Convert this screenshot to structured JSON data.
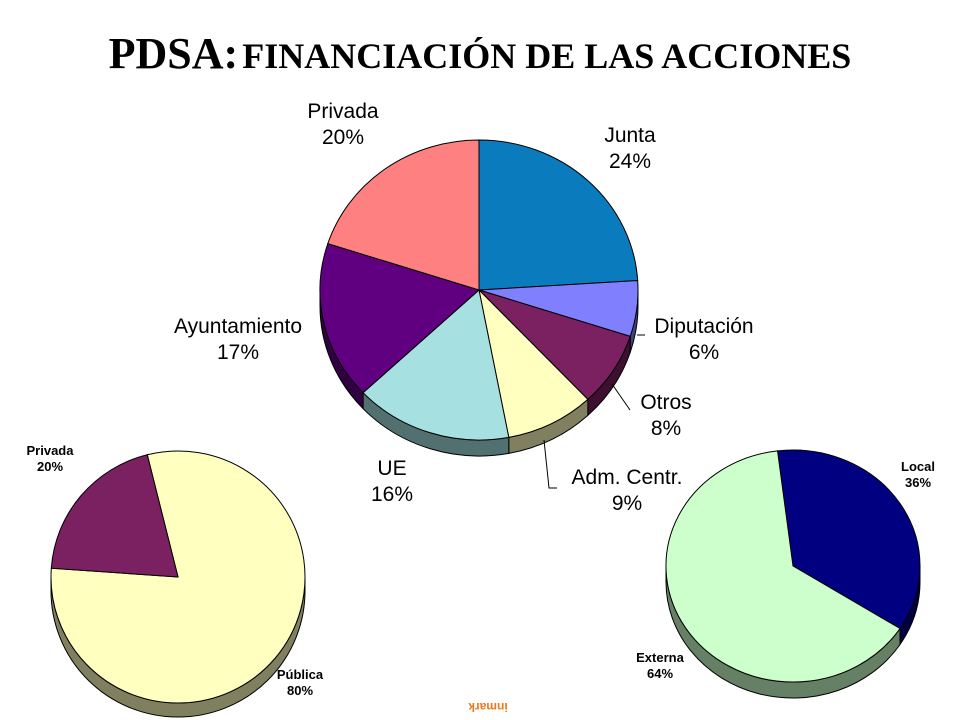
{
  "title": {
    "main": "PDSA:",
    "sub": "FINANCIACIÓN DE LAS ACCIONES"
  },
  "watermark": "inmark",
  "chart_data": [
    {
      "type": "pie",
      "slices": [
        {
          "label": "Junta",
          "pct": "24%",
          "value": 24,
          "color": "#0A7CBD"
        },
        {
          "label": "Diputación",
          "pct": "6%",
          "value": 6,
          "color": "#8080FF"
        },
        {
          "label": "Otros",
          "pct": "8%",
          "value": 8,
          "color": "#7B2060"
        },
        {
          "label": "Adm. Centr.",
          "pct": "9%",
          "value": 9,
          "color": "#FFFFC0"
        },
        {
          "label": "UE",
          "pct": "16%",
          "value": 16,
          "color": "#A6E0E0"
        },
        {
          "label": "Ayuntamiento",
          "pct": "17%",
          "value": 17,
          "color": "#600080"
        },
        {
          "label": "Privada",
          "pct": "20%",
          "value": 20,
          "color": "#FF8080"
        }
      ]
    },
    {
      "type": "pie",
      "slices": [
        {
          "label": "Pública",
          "pct": "80%",
          "value": 80,
          "color": "#FFFFC0"
        },
        {
          "label": "Privada",
          "pct": "20%",
          "value": 20,
          "color": "#7B2060"
        }
      ]
    },
    {
      "type": "pie",
      "slices": [
        {
          "label": "Local",
          "pct": "36%",
          "value": 36,
          "color": "#000080"
        },
        {
          "label": "Externa",
          "pct": "64%",
          "value": 64,
          "color": "#CCFFCC"
        }
      ]
    }
  ]
}
